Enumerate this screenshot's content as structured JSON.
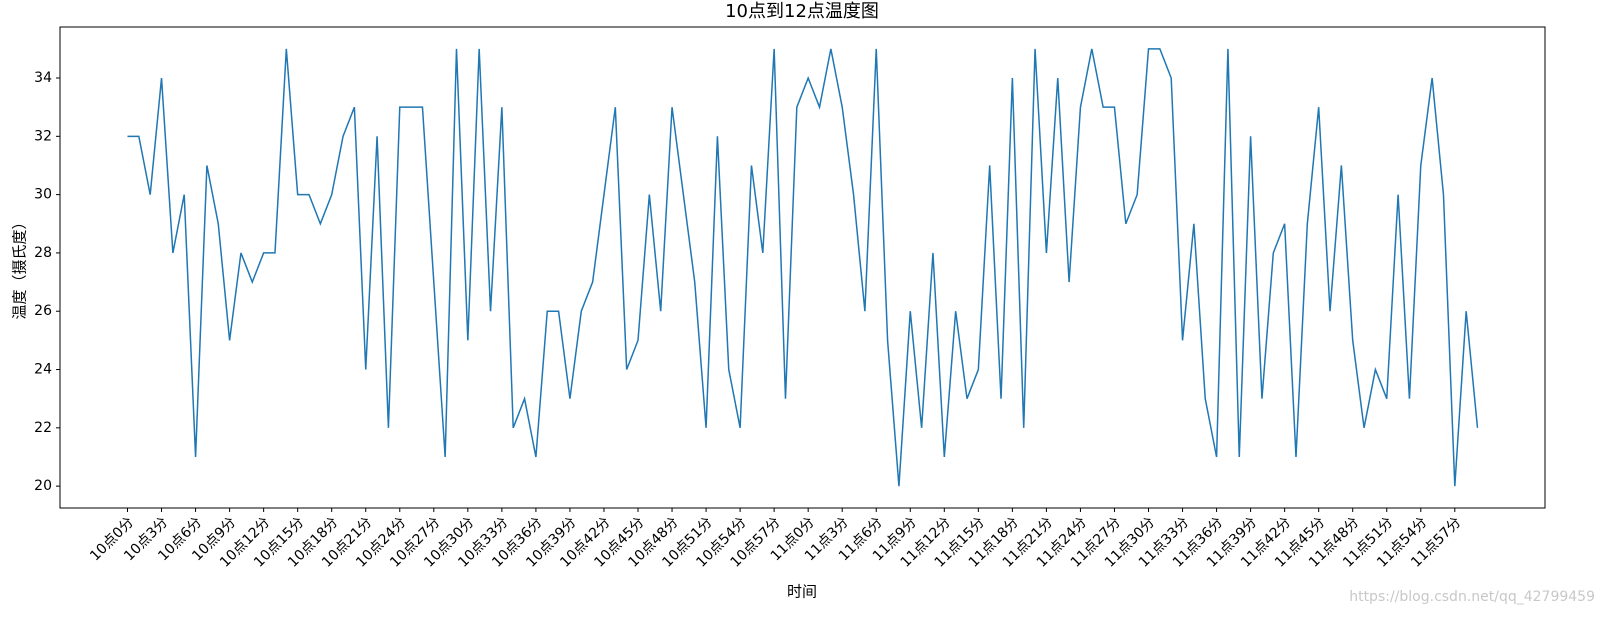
{
  "chart_data": {
    "type": "line",
    "title": "10点到12点温度图",
    "x_label": "时间",
    "y_label": "温度（摄氏度）",
    "watermark": "https://blog.csdn.net/qq_42799459",
    "categories": [
      "10点0分",
      null,
      null,
      "10点3分",
      null,
      null,
      "10点6分",
      null,
      null,
      "10点9分",
      null,
      null,
      "10点12分",
      null,
      null,
      "10点15分",
      null,
      null,
      "10点18分",
      null,
      null,
      "10点21分",
      null,
      null,
      "10点24分",
      null,
      null,
      "10点27分",
      null,
      null,
      "10点30分",
      null,
      null,
      "10点33分",
      null,
      null,
      "10点36分",
      null,
      null,
      "10点39分",
      null,
      null,
      "10点42分",
      null,
      null,
      "10点45分",
      null,
      null,
      "10点48分",
      null,
      null,
      "10点51分",
      null,
      null,
      "10点54分",
      null,
      null,
      "10点57分",
      null,
      null,
      "11点0分",
      null,
      null,
      "11点3分",
      null,
      null,
      "11点6分",
      null,
      null,
      "11点9分",
      null,
      null,
      "11点12分",
      null,
      null,
      "11点15分",
      null,
      null,
      "11点18分",
      null,
      null,
      "11点21分",
      null,
      null,
      "11点24分",
      null,
      null,
      "11点27分",
      null,
      null,
      "11点30分",
      null,
      null,
      "11点33分",
      null,
      null,
      "11点36分",
      null,
      null,
      "11点39分",
      null,
      null,
      "11点42分",
      null,
      null,
      "11点45分",
      null,
      null,
      "11点48分",
      null,
      null,
      "11点51分",
      null,
      null,
      "11点54分",
      null,
      null,
      "11点57分",
      null,
      null
    ],
    "values": [
      32,
      32,
      30,
      34,
      28,
      30,
      21,
      31,
      29,
      25,
      28,
      27,
      28,
      28,
      35,
      30,
      30,
      29,
      30,
      32,
      33,
      24,
      32,
      22,
      33,
      33,
      33,
      27,
      21,
      35,
      25,
      35,
      26,
      33,
      22,
      23,
      21,
      26,
      26,
      23,
      26,
      27,
      30,
      33,
      24,
      25,
      30,
      26,
      33,
      30,
      27,
      22,
      32,
      24,
      22,
      31,
      28,
      35,
      23,
      33,
      34,
      33,
      35,
      33,
      30,
      26,
      35,
      25,
      20,
      26,
      22,
      28,
      21,
      26,
      23,
      24,
      31,
      23,
      34,
      22,
      35,
      28,
      34,
      27,
      33,
      35,
      33,
      33,
      29,
      30,
      35,
      35,
      34,
      25,
      29,
      23,
      21,
      35,
      21,
      32,
      23,
      28,
      29,
      21,
      29,
      33,
      26,
      31,
      25,
      22,
      24,
      23,
      30,
      23,
      31,
      34,
      30,
      20,
      26,
      22
    ],
    "color": "#1f77b4",
    "ylim": [
      19.25,
      35.75
    ],
    "yticks": [
      20,
      22,
      24,
      26,
      28,
      30,
      32,
      34
    ]
  }
}
